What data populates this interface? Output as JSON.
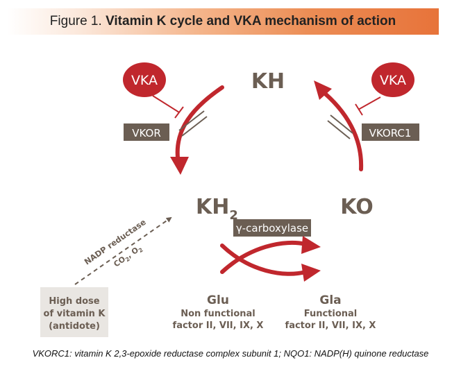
{
  "title": {
    "prefix": "Figure 1.",
    "main": "Vitamin K cycle and VKA mechanism of action"
  },
  "nodes": {
    "kh": "KH",
    "kh2_base": "KH",
    "kh2_sub": "2",
    "ko": "KO"
  },
  "inhibitors": {
    "left": "VKA",
    "right": "VKA"
  },
  "enzymes": {
    "vkor": "VKOR",
    "vkorc1": "VKORC1",
    "carboxylase": "γ-carboxylase",
    "nadp": "NADP reductase",
    "co2": "CO",
    "co2_sub": "2",
    "o2": "O",
    "o2_sub": "2"
  },
  "antidote": {
    "line1": "High dose",
    "line2": "of vitamin K",
    "line3": "(antidote)"
  },
  "substrates": {
    "glu_title": "Glu",
    "glu_line1": "Non functional",
    "glu_line2": "factor II, VII, IX, X",
    "gla_title": "Gla",
    "gla_line1": "Functional",
    "gla_line2": "factor II, VII, IX, X"
  },
  "footnote": "VKORC1: vitamin K 2,3-epoxide reductase complex subunit 1; NQO1: NADP(H) quinone reductase",
  "colors": {
    "red": "#c0272d",
    "dark": "#6b5e53",
    "text": "#6b5e53",
    "light_box": "#e9e6e2",
    "orange": "#e7733a"
  }
}
